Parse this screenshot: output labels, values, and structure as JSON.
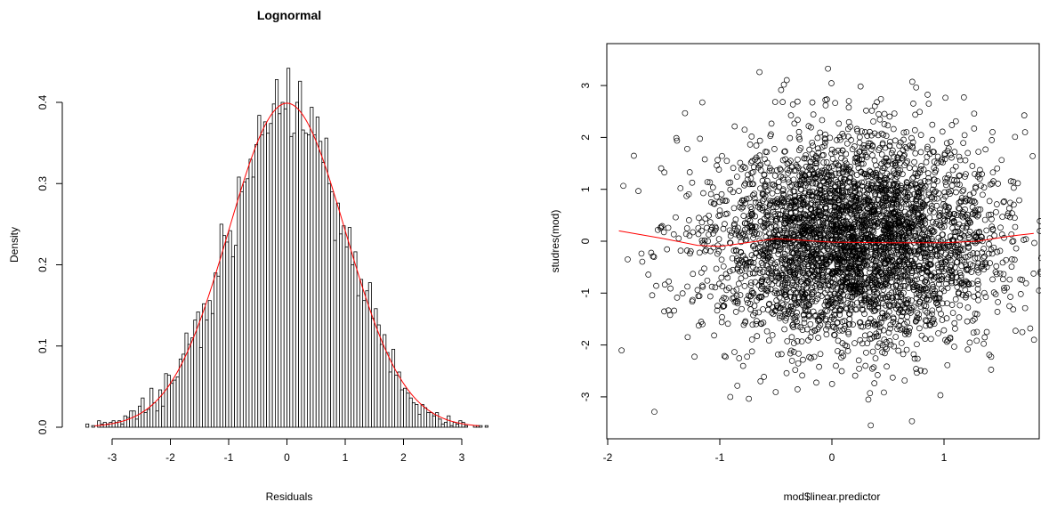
{
  "colors": {
    "bar_stroke": "#000000",
    "bar_fill": "#ffffff",
    "curve": "#ff0000",
    "point": "#000000",
    "smooth": "#ff0000"
  },
  "chart_data": [
    {
      "type": "bar",
      "subtype": "histogram",
      "title": "Lognormal",
      "xlabel": "Residuals",
      "ylabel": "Density",
      "xlim": [
        -3.5,
        3.6
      ],
      "ylim": [
        0,
        0.45
      ],
      "xticks": [
        "-3",
        "-2",
        "-1",
        "0",
        "1",
        "2",
        "3"
      ],
      "yticks": [
        "0.0",
        "0.1",
        "0.2",
        "0.3",
        "0.4"
      ],
      "bin_start": -3.5,
      "bin_width": 0.05,
      "grid": false,
      "overlay": {
        "type": "line",
        "description": "normal density",
        "mean": 0,
        "sd": 1
      }
    },
    {
      "type": "scatter",
      "title": "",
      "xlabel": "mod$linear.predictor",
      "ylabel": "studres(mod)",
      "xlim": [
        -1.95,
        1.9
      ],
      "ylim": [
        -3.65,
        3.65
      ],
      "xticks": [
        "-2",
        "-1",
        "0",
        "1"
      ],
      "yticks": [
        "-3",
        "-2",
        "-1",
        "0",
        "1",
        "2",
        "3"
      ],
      "marker": "open circle",
      "grid": false,
      "point_cloud": {
        "approx_count": 4000,
        "x_center": 0.2,
        "x_sd": 0.65,
        "y_center": 0,
        "y_sd": 1
      },
      "smooth": {
        "x": [
          -1.9,
          -1.5,
          -1.2,
          -1.0,
          -0.5,
          0.0,
          0.5,
          1.0,
          1.3,
          1.6,
          1.8
        ],
        "y": [
          0.2,
          0.05,
          -0.08,
          -0.1,
          0.05,
          -0.02,
          -0.03,
          -0.03,
          0.0,
          0.1,
          0.15
        ]
      }
    }
  ]
}
